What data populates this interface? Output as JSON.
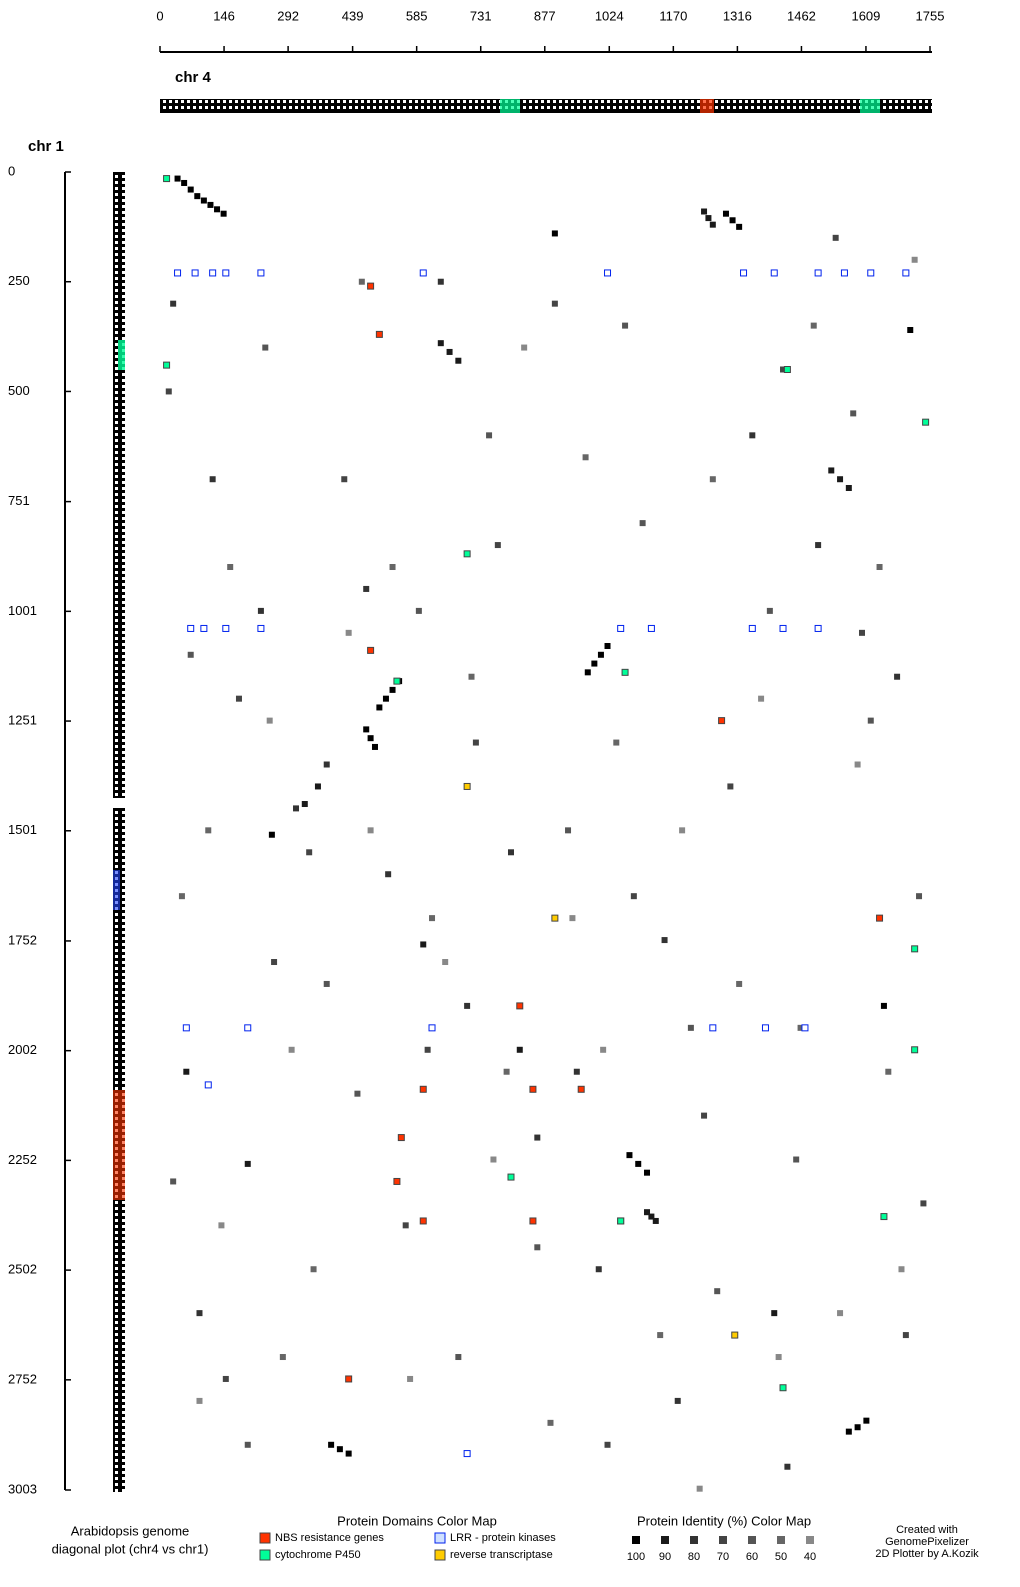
{
  "chart_data": {
    "type": "scatter",
    "title": [
      "Arabidopsis genome",
      "diagonal plot (chr4 vs chr1)"
    ],
    "x_label": "chr 4",
    "y_label": "chr 1",
    "xlim": [
      0,
      1755
    ],
    "ylim": [
      0,
      3003
    ],
    "y_inverted": true,
    "xticks": [
      0,
      146,
      292,
      439,
      585,
      731,
      877,
      1024,
      1170,
      1316,
      1462,
      1609,
      1755
    ],
    "yticks": [
      0,
      250,
      500,
      751,
      1001,
      1251,
      1501,
      1752,
      2002,
      2252,
      2502,
      2752,
      3003
    ],
    "identity_legend_title": "Protein Identity (%) Color Map",
    "domain_legend_title": "Protein Domains Color Map",
    "credit": [
      "Created with",
      "GenomePixelizer",
      "2D Plotter by A.Kozik"
    ],
    "series": [
      {
        "name": "100",
        "color": "#000000",
        "x": [
          40,
          55,
          70,
          85,
          100,
          115,
          130,
          145,
          1290,
          1305,
          1320,
          975,
          990,
          1005,
          1020,
          500,
          515,
          530,
          545,
          470,
          480,
          490,
          1570,
          1590,
          1610,
          1070,
          1090,
          1110,
          390,
          410,
          430,
          900,
          1710,
          1650,
          255
        ],
        "values": [
          15,
          25,
          40,
          55,
          65,
          75,
          85,
          95,
          95,
          110,
          125,
          1140,
          1120,
          1100,
          1080,
          1220,
          1200,
          1180,
          1160,
          1270,
          1290,
          1310,
          2870,
          2860,
          2845,
          2240,
          2260,
          2280,
          2900,
          2910,
          2920,
          140,
          360,
          1900,
          1510
        ]
      },
      {
        "name": "90",
        "color": "#1a1a1a",
        "x": [
          1240,
          1250,
          1260,
          640,
          660,
          680,
          1530,
          1550,
          1570,
          1110,
          1120,
          1130,
          330,
          360,
          600,
          820,
          1400,
          60,
          200
        ],
        "values": [
          90,
          105,
          120,
          390,
          410,
          430,
          680,
          700,
          720,
          2370,
          2380,
          2390,
          1440,
          1400,
          1760,
          2000,
          2600,
          2050,
          2260
        ]
      },
      {
        "name": "80",
        "color": "#333333",
        "x": [
          30,
          120,
          230,
          380,
          520,
          700,
          860,
          1000,
          1180,
          1350,
          1500,
          1680,
          90,
          310,
          470,
          640,
          800,
          950,
          1150,
          1430
        ],
        "values": [
          300,
          700,
          1000,
          1350,
          1600,
          1900,
          2200,
          2500,
          2800,
          600,
          850,
          1150,
          2600,
          1450,
          950,
          250,
          1550,
          2050,
          1750,
          2950
        ]
      },
      {
        "name": "70",
        "color": "#444444",
        "x": [
          20,
          180,
          260,
          420,
          560,
          720,
          900,
          1080,
          1240,
          1420,
          1600,
          1740,
          150,
          340,
          610,
          770,
          1020,
          1300,
          1540,
          1700
        ],
        "values": [
          500,
          1200,
          1800,
          700,
          2400,
          1300,
          300,
          1650,
          2150,
          450,
          1050,
          2350,
          2750,
          1550,
          2000,
          850,
          2900,
          1400,
          150,
          2650
        ]
      },
      {
        "name": "60",
        "color": "#555555",
        "x": [
          70,
          240,
          450,
          590,
          750,
          930,
          1100,
          1270,
          1450,
          1620,
          200,
          380,
          680,
          860,
          1060,
          1210,
          1390,
          1580,
          1730,
          30
        ],
        "values": [
          1100,
          400,
          2100,
          1000,
          600,
          1500,
          800,
          2550,
          2250,
          1250,
          2900,
          1850,
          2700,
          2450,
          350,
          1950,
          1000,
          550,
          1650,
          2300
        ]
      },
      {
        "name": "50",
        "color": "#666666",
        "x": [
          110,
          280,
          460,
          620,
          790,
          970,
          1140,
          1320,
          1490,
          1660,
          50,
          350,
          530,
          710,
          890,
          1040,
          1260,
          1460,
          1640,
          160
        ],
        "values": [
          1500,
          2700,
          250,
          1700,
          2050,
          650,
          2650,
          1850,
          350,
          2050,
          1650,
          2500,
          900,
          1150,
          2850,
          1300,
          700,
          1950,
          900,
          900
        ]
      },
      {
        "name": "40",
        "color": "#888888",
        "x": [
          140,
          300,
          480,
          650,
          830,
          1010,
          1190,
          1370,
          1550,
          1720,
          90,
          430,
          570,
          760,
          940,
          1230,
          1410,
          1590,
          1690,
          250
        ],
        "values": [
          2400,
          2000,
          1500,
          1800,
          400,
          2000,
          1500,
          1200,
          2600,
          200,
          2800,
          1050,
          2750,
          2250,
          1700,
          3000,
          2700,
          1350,
          2500,
          1250
        ]
      }
    ],
    "domain_series": [
      {
        "name": "NBS resistance genes",
        "color": "#ff3300",
        "x": [
          600,
          850,
          960,
          550,
          540,
          480,
          850,
          1050,
          600,
          820,
          430,
          1280,
          1640,
          480,
          500
        ],
        "values": [
          2090,
          2090,
          2090,
          2200,
          2300,
          1090,
          2390,
          2390,
          2390,
          1900,
          2750,
          1250,
          1700,
          260,
          370
        ]
      },
      {
        "name": "LRR - protein kinases",
        "color": "#0022ee",
        "x": [
          40,
          80,
          120,
          150,
          230,
          600,
          1020,
          1330,
          1400,
          1500,
          1560,
          1620,
          1700,
          70,
          100,
          150,
          230,
          1050,
          1120,
          1350,
          1420,
          1500,
          60,
          200,
          620,
          1260,
          1380,
          1470,
          110,
          700
        ],
        "values": [
          230,
          230,
          230,
          230,
          230,
          230,
          230,
          230,
          230,
          230,
          230,
          230,
          230,
          1040,
          1040,
          1040,
          1040,
          1040,
          1040,
          1040,
          1040,
          1040,
          1950,
          1950,
          1950,
          1950,
          1950,
          1950,
          2080,
          2920
        ]
      },
      {
        "name": "cytochrome P450",
        "color": "#00ff99",
        "x": [
          15,
          15,
          800,
          1050,
          1430,
          700,
          1060,
          1745,
          1720,
          1720,
          1420,
          1650,
          540
        ],
        "values": [
          15,
          440,
          2290,
          2390,
          450,
          870,
          1140,
          570,
          2000,
          1770,
          2770,
          2380,
          1160
        ]
      },
      {
        "name": "reverse transcriptase",
        "color": "#ffcc00",
        "x": [
          700,
          900,
          1310
        ],
        "values": [
          1400,
          1700,
          2650
        ]
      }
    ]
  }
}
